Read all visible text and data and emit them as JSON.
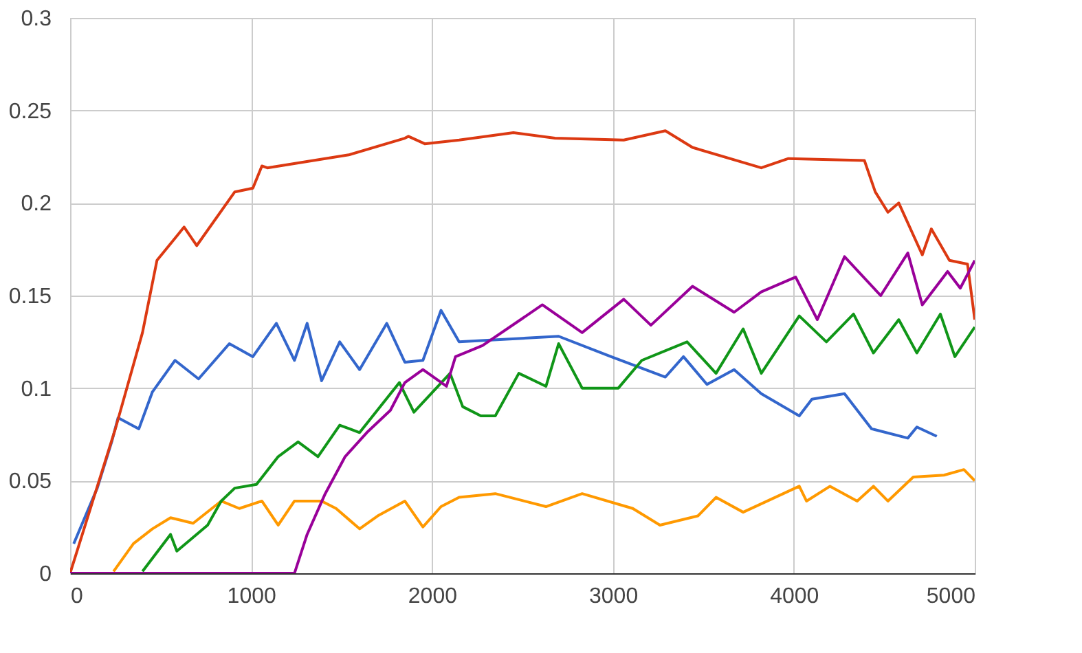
{
  "chart_data": {
    "type": "line",
    "xlim": [
      0,
      5000
    ],
    "xticks": [
      0,
      1000,
      2000,
      3000,
      4000,
      5000
    ],
    "ylim": [
      0,
      0.3
    ],
    "yticks": [
      0,
      0.05,
      0.1,
      0.15,
      0.2,
      0.25,
      0.3
    ],
    "grid": true,
    "marker": "none",
    "line_style": "solid",
    "series": [
      {
        "color": "#3366cc",
        "x": [
          20,
          150,
          230,
          265,
          380,
          455,
          580,
          710,
          880,
          1010,
          1140,
          1240,
          1310,
          1390,
          1490,
          1600,
          1750,
          1850,
          1950,
          2050,
          2150,
          2700,
          2990,
          3290,
          3390,
          3520,
          3670,
          3820,
          4030,
          4100,
          4280,
          4430,
          4630,
          4680,
          4790
        ],
        "values": [
          0.016,
          0.046,
          0.071,
          0.084,
          0.078,
          0.098,
          0.115,
          0.105,
          0.124,
          0.117,
          0.135,
          0.115,
          0.135,
          0.104,
          0.125,
          0.11,
          0.135,
          0.114,
          0.115,
          0.142,
          0.125,
          0.128,
          0.117,
          0.106,
          0.117,
          0.102,
          0.11,
          0.097,
          0.085,
          0.094,
          0.097,
          0.078,
          0.073,
          0.079,
          0.074
        ]
      },
      {
        "color": "#dc3912",
        "x": [
          0,
          250,
          400,
          480,
          630,
          700,
          910,
          1010,
          1060,
          1090,
          1540,
          1850,
          1870,
          1960,
          2150,
          2450,
          2680,
          3060,
          3290,
          3440,
          3820,
          3970,
          4390,
          4450,
          4520,
          4580,
          4710,
          4760,
          4860,
          4960,
          5000
        ],
        "values": [
          0,
          0.078,
          0.13,
          0.169,
          0.187,
          0.177,
          0.206,
          0.208,
          0.22,
          0.219,
          0.226,
          0.235,
          0.236,
          0.232,
          0.234,
          0.238,
          0.235,
          0.234,
          0.239,
          0.23,
          0.219,
          0.224,
          0.223,
          0.206,
          0.195,
          0.2,
          0.172,
          0.186,
          0.169,
          0.167,
          0.137
        ]
      },
      {
        "color": "#ff9900",
        "x": [
          240,
          350,
          455,
          555,
          680,
          835,
          935,
          1060,
          1150,
          1240,
          1390,
          1470,
          1600,
          1700,
          1850,
          1950,
          2050,
          2150,
          2350,
          2630,
          2830,
          3110,
          3260,
          3470,
          3570,
          3720,
          4030,
          4070,
          4200,
          4350,
          4440,
          4520,
          4660,
          4830,
          4940,
          5000
        ],
        "values": [
          0.001,
          0.016,
          0.024,
          0.03,
          0.027,
          0.039,
          0.035,
          0.039,
          0.026,
          0.039,
          0.039,
          0.035,
          0.024,
          0.031,
          0.039,
          0.025,
          0.036,
          0.041,
          0.043,
          0.036,
          0.043,
          0.035,
          0.026,
          0.031,
          0.041,
          0.033,
          0.047,
          0.039,
          0.047,
          0.039,
          0.047,
          0.039,
          0.052,
          0.053,
          0.056,
          0.05
        ]
      },
      {
        "color": "#109618",
        "x": [
          400,
          555,
          590,
          760,
          835,
          910,
          1030,
          1150,
          1260,
          1370,
          1490,
          1600,
          1820,
          1900,
          2100,
          2170,
          2270,
          2350,
          2480,
          2630,
          2700,
          2830,
          3030,
          3160,
          3410,
          3570,
          3720,
          3820,
          4030,
          4180,
          4330,
          4440,
          4580,
          4680,
          4810,
          4890,
          5000
        ],
        "values": [
          0.001,
          0.021,
          0.012,
          0.026,
          0.039,
          0.046,
          0.048,
          0.063,
          0.071,
          0.063,
          0.08,
          0.076,
          0.103,
          0.087,
          0.108,
          0.09,
          0.085,
          0.085,
          0.108,
          0.101,
          0.124,
          0.1,
          0.1,
          0.115,
          0.125,
          0.108,
          0.132,
          0.108,
          0.139,
          0.125,
          0.14,
          0.119,
          0.137,
          0.119,
          0.14,
          0.117,
          0.133
        ]
      },
      {
        "color": "#990099",
        "x": [
          0,
          1240,
          1310,
          1410,
          1520,
          1640,
          1770,
          1850,
          1950,
          2080,
          2130,
          2280,
          2610,
          2830,
          3060,
          3210,
          3440,
          3670,
          3820,
          4010,
          4130,
          4280,
          4480,
          4630,
          4710,
          4850,
          4920,
          5000
        ],
        "values": [
          0,
          0,
          0.021,
          0.043,
          0.063,
          0.076,
          0.088,
          0.103,
          0.11,
          0.101,
          0.117,
          0.123,
          0.145,
          0.13,
          0.148,
          0.134,
          0.155,
          0.141,
          0.152,
          0.16,
          0.137,
          0.171,
          0.15,
          0.173,
          0.145,
          0.163,
          0.154,
          0.169
        ]
      }
    ]
  }
}
